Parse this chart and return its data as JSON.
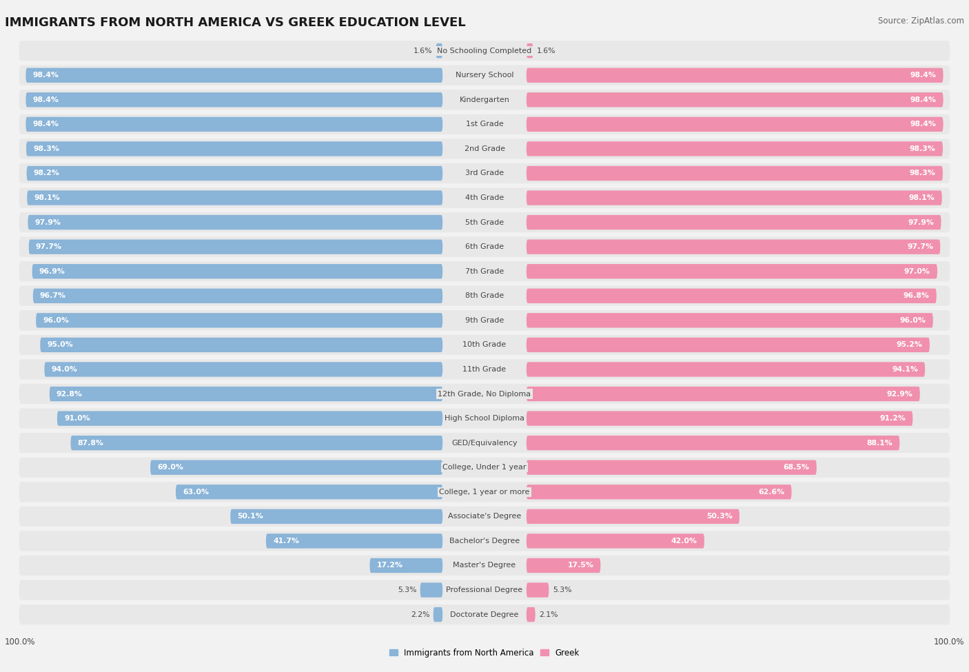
{
  "title": "IMMIGRANTS FROM NORTH AMERICA VS GREEK EDUCATION LEVEL",
  "source": "Source: ZipAtlas.com",
  "categories": [
    "No Schooling Completed",
    "Nursery School",
    "Kindergarten",
    "1st Grade",
    "2nd Grade",
    "3rd Grade",
    "4th Grade",
    "5th Grade",
    "6th Grade",
    "7th Grade",
    "8th Grade",
    "9th Grade",
    "10th Grade",
    "11th Grade",
    "12th Grade, No Diploma",
    "High School Diploma",
    "GED/Equivalency",
    "College, Under 1 year",
    "College, 1 year or more",
    "Associate's Degree",
    "Bachelor's Degree",
    "Master's Degree",
    "Professional Degree",
    "Doctorate Degree"
  ],
  "left_values": [
    1.6,
    98.4,
    98.4,
    98.4,
    98.3,
    98.2,
    98.1,
    97.9,
    97.7,
    96.9,
    96.7,
    96.0,
    95.0,
    94.0,
    92.8,
    91.0,
    87.8,
    69.0,
    63.0,
    50.1,
    41.7,
    17.2,
    5.3,
    2.2
  ],
  "right_values": [
    1.6,
    98.4,
    98.4,
    98.4,
    98.3,
    98.3,
    98.1,
    97.9,
    97.7,
    97.0,
    96.8,
    96.0,
    95.2,
    94.1,
    92.9,
    91.2,
    88.1,
    68.5,
    62.6,
    50.3,
    42.0,
    17.5,
    5.3,
    2.1
  ],
  "left_color": "#8ab4d8",
  "right_color": "#f090ae",
  "label_color": "#444444",
  "bg_color": "#f2f2f2",
  "row_bg_color": "#e8e8e8",
  "legend_left": "Immigrants from North America",
  "legend_right": "Greek",
  "title_fontsize": 13,
  "label_fontsize": 8.0,
  "value_fontsize": 7.8,
  "max_val": 100.0
}
